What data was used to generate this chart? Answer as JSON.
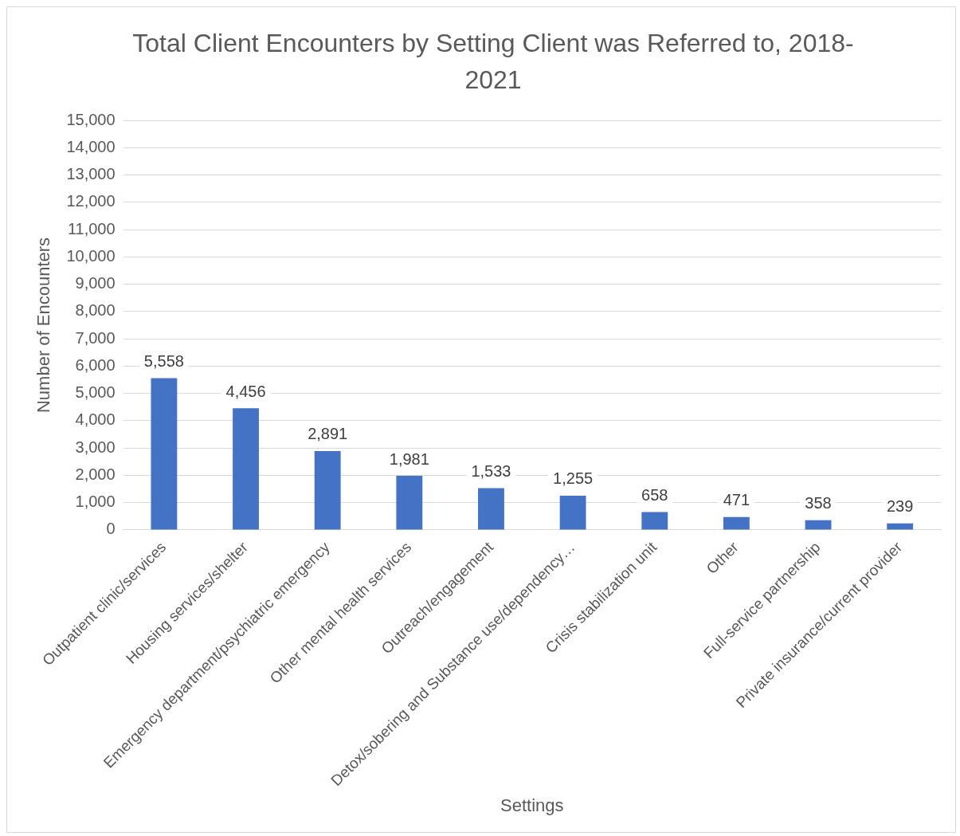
{
  "chart_data": {
    "type": "bar",
    "title": "Total Client Encounters by Setting Client was Referred to, 2018-2021",
    "xlabel": "Settings",
    "ylabel": "Number of Encounters",
    "categories": [
      "Outpatient clinic/services",
      "Housing services/shelter",
      "Emergency department/psychiatric emergency",
      "Other mental health services",
      "Outreach/engagement",
      "Detox/sobering and Substance use/dependency…",
      "Crisis stabilization unit",
      "Other",
      "Full-service partnership",
      "Private insurance/current provider"
    ],
    "values": [
      5558,
      4456,
      2891,
      1981,
      1533,
      1255,
      658,
      471,
      358,
      239
    ],
    "value_labels": [
      "5,558",
      "4,456",
      "2,891",
      "1,981",
      "1,533",
      "1,255",
      "658",
      "471",
      "358",
      "239"
    ],
    "color": "#4472c4",
    "ylim": [
      0,
      15000
    ],
    "yticks": [
      {
        "value": 0,
        "label": "0"
      },
      {
        "value": 1000,
        "label": "1,000"
      },
      {
        "value": 2000,
        "label": "2,000"
      },
      {
        "value": 3000,
        "label": "3,000"
      },
      {
        "value": 4000,
        "label": "4,000"
      },
      {
        "value": 5000,
        "label": "5,000"
      },
      {
        "value": 6000,
        "label": "6,000"
      },
      {
        "value": 7000,
        "label": "7,000"
      },
      {
        "value": 8000,
        "label": "8,000"
      },
      {
        "value": 9000,
        "label": "9,000"
      },
      {
        "value": 10000,
        "label": "10,000"
      },
      {
        "value": 11000,
        "label": "11,000"
      },
      {
        "value": 12000,
        "label": "12,000"
      },
      {
        "value": 13000,
        "label": "13,000"
      },
      {
        "value": 14000,
        "label": "14,000"
      },
      {
        "value": 15000,
        "label": "15,000"
      }
    ],
    "grid": "y"
  }
}
